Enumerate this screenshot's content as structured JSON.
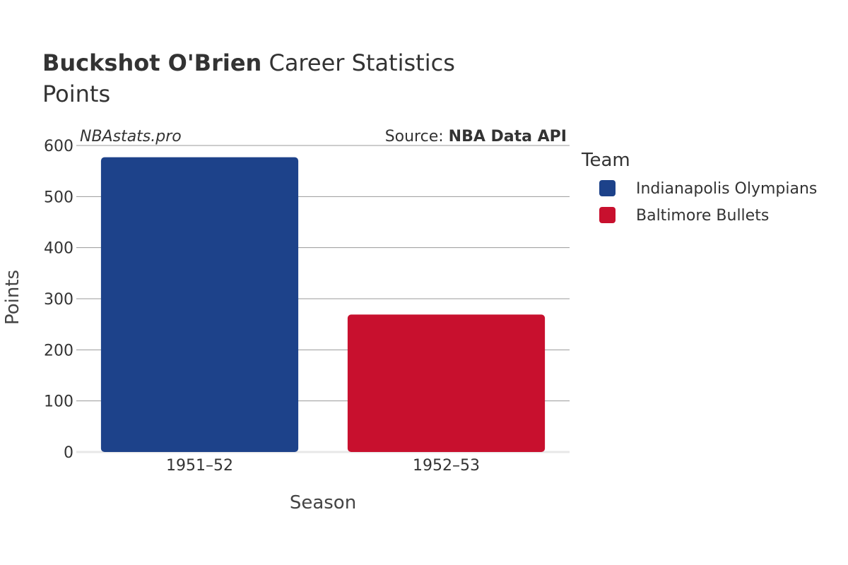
{
  "header": {
    "player_name": "Buckshot O'Brien",
    "title_suffix": " Career Statistics",
    "subtitle": "Points"
  },
  "watermark": "NBAstats.pro",
  "source": {
    "prefix": "Source: ",
    "name": "NBA Data API"
  },
  "legend": {
    "title": "Team",
    "items": [
      {
        "label": "Indianapolis Olympians",
        "color": "#1d428a"
      },
      {
        "label": "Baltimore Bullets",
        "color": "#c8102e"
      }
    ]
  },
  "chart_data": {
    "type": "bar",
    "title": "Buckshot O'Brien Career Statistics",
    "subtitle": "Points",
    "xlabel": "Season",
    "ylabel": "Points",
    "ylim": [
      0,
      600
    ],
    "yticks": [
      0,
      100,
      200,
      300,
      400,
      500,
      600
    ],
    "grid": true,
    "legend_position": "right",
    "categories": [
      "1951–52",
      "1952–53"
    ],
    "series": [
      {
        "name": "Indianapolis Olympians",
        "color": "#1d428a",
        "values": [
          577,
          null
        ]
      },
      {
        "name": "Baltimore Bullets",
        "color": "#c8102e",
        "values": [
          null,
          269
        ]
      }
    ]
  }
}
